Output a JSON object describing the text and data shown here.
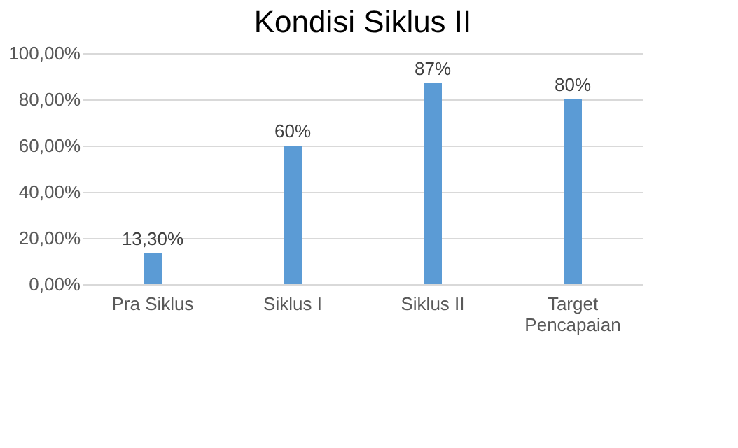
{
  "chart_data": {
    "type": "bar",
    "title": "Kondisi Siklus II",
    "categories": [
      "Pra Siklus",
      "Siklus I",
      "Siklus II",
      "Target Pencapaian"
    ],
    "values": [
      13.3,
      60,
      87,
      80
    ],
    "value_labels": [
      "13,30%",
      "60%",
      "87%",
      "80%"
    ],
    "color": "#5b9bd5",
    "ylim": [
      0,
      100
    ],
    "yticks": [
      {
        "value": 0,
        "label": "0,00%"
      },
      {
        "value": 20,
        "label": "20,00%"
      },
      {
        "value": 40,
        "label": "40,00%"
      },
      {
        "value": 60,
        "label": "60,00%"
      },
      {
        "value": 80,
        "label": "80,00%"
      },
      {
        "value": 100,
        "label": "100,00%"
      }
    ],
    "grid": "y"
  }
}
